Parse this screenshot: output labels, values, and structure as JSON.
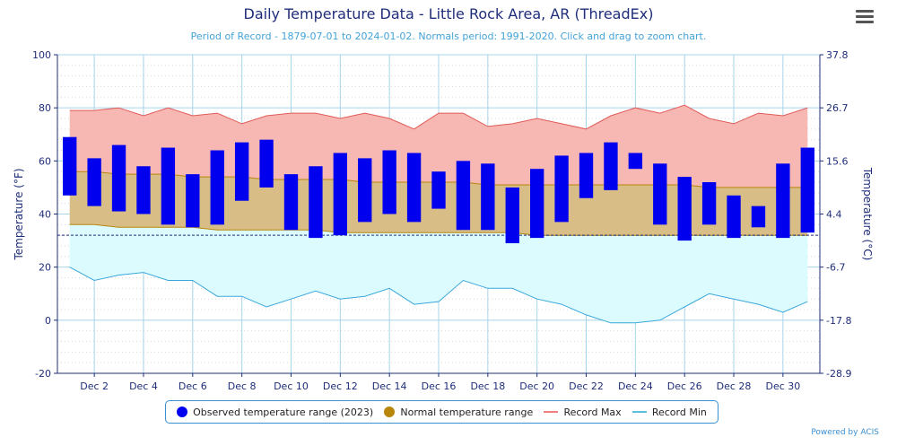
{
  "header": {
    "title": "Daily Temperature Data - Little Rock Area, AR (ThreadEx)",
    "subtitle": "Period of Record - 1879-07-01 to 2024-01-02. Normals period: 1991-2020. Click and drag to zoom chart."
  },
  "menu": {
    "icon": "hamburger-menu-icon"
  },
  "credits": "Powered by ACIS",
  "legend": [
    {
      "label": "Observed temperature range (2023)",
      "color": "#0000ee",
      "shape": "dot"
    },
    {
      "label": "Normal temperature range",
      "color": "#b8860b",
      "shape": "dot"
    },
    {
      "label": "Record Max",
      "color": "#f08080",
      "shape": "line"
    },
    {
      "label": "Record Min",
      "color": "#5bc0de",
      "shape": "line"
    }
  ],
  "chart_data": {
    "type": "bar",
    "xlabel": "",
    "ylabel": "Temperature (°F)",
    "y2label": "Temperature (°C)",
    "ylim": [
      -20,
      100
    ],
    "yticks": [
      -20,
      0,
      20,
      40,
      60,
      80,
      100
    ],
    "y2ticks": [
      "-28.9",
      "-17.8",
      "-6.7",
      "4.4",
      "15.6",
      "26.7",
      "37.8"
    ],
    "xlim": [
      0.5,
      31.5
    ],
    "xticks": [
      "Dec 2",
      "Dec 4",
      "Dec 6",
      "Dec 8",
      "Dec 10",
      "Dec 12",
      "Dec 14",
      "Dec 16",
      "Dec 18",
      "Dec 20",
      "Dec 22",
      "Dec 24",
      "Dec 26",
      "Dec 28",
      "Dec 30"
    ],
    "xtick_days": [
      2,
      4,
      6,
      8,
      10,
      12,
      14,
      16,
      18,
      20,
      22,
      24,
      26,
      28,
      30
    ],
    "freezing_line": 32,
    "days": [
      1,
      2,
      3,
      4,
      5,
      6,
      7,
      8,
      9,
      10,
      11,
      12,
      13,
      14,
      15,
      16,
      17,
      18,
      19,
      20,
      21,
      22,
      23,
      24,
      25,
      26,
      27,
      28,
      29,
      30,
      31
    ],
    "observed_high": [
      69,
      61,
      66,
      58,
      65,
      55,
      64,
      67,
      68,
      55,
      58,
      63,
      61,
      64,
      63,
      56,
      60,
      59,
      50,
      57,
      62,
      63,
      67,
      63,
      59,
      54,
      52,
      47,
      43,
      59,
      65
    ],
    "observed_low": [
      47,
      43,
      41,
      40,
      36,
      35,
      36,
      45,
      50,
      34,
      31,
      32,
      37,
      40,
      37,
      42,
      34,
      34,
      29,
      31,
      37,
      46,
      49,
      57,
      36,
      30,
      36,
      31,
      35,
      31,
      33
    ],
    "normal_high": [
      56,
      56,
      55,
      55,
      55,
      54,
      54,
      54,
      53,
      53,
      53,
      53,
      52,
      52,
      52,
      52,
      52,
      51,
      51,
      51,
      51,
      51,
      51,
      51,
      51,
      51,
      50,
      50,
      50,
      50,
      50
    ],
    "normal_low": [
      36,
      36,
      35,
      35,
      35,
      35,
      34,
      34,
      34,
      34,
      34,
      33,
      33,
      33,
      33,
      33,
      33,
      33,
      33,
      32,
      32,
      32,
      32,
      32,
      32,
      32,
      32,
      32,
      32,
      32,
      32
    ],
    "record_max": [
      79,
      79,
      80,
      77,
      80,
      77,
      78,
      74,
      77,
      78,
      78,
      76,
      78,
      76,
      72,
      78,
      78,
      73,
      74,
      76,
      74,
      72,
      77,
      80,
      78,
      81,
      76,
      74,
      78,
      77,
      80
    ],
    "record_min": [
      20,
      15,
      17,
      18,
      15,
      15,
      9,
      9,
      5,
      8,
      11,
      8,
      9,
      12,
      6,
      7,
      15,
      12,
      12,
      8,
      6,
      2,
      -1,
      -1,
      0,
      5,
      10,
      8,
      6,
      3,
      7
    ]
  }
}
